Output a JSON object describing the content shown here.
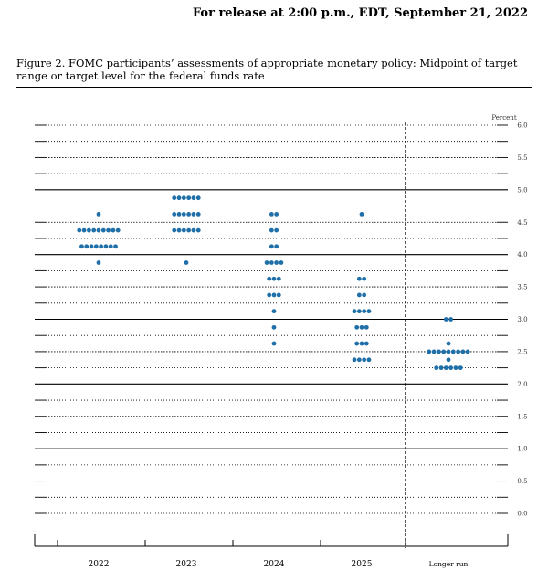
{
  "header": {
    "release": "For release at 2:00 p.m., EDT, September 21, 2022"
  },
  "figure": {
    "caption": "Figure 2.  FOMC participants’ assessments of appropriate monetary policy: Midpoint of target range or target level for the federal funds rate"
  },
  "chart_data": {
    "type": "scatter",
    "ylabel": "Percent",
    "ylim": [
      0,
      6
    ],
    "yticks": [
      "6.0",
      "5.5",
      "5.0",
      "4.5",
      "4.0",
      "3.5",
      "3.0",
      "2.5",
      "2.0",
      "1.5",
      "1.0",
      "0.5",
      "0.0"
    ],
    "categories": [
      "2022",
      "2023",
      "2024",
      "2025",
      "Longer run"
    ],
    "dot_color": "#1f6fa8",
    "series": [
      {
        "category": "2022",
        "points": [
          {
            "y": 4.625,
            "count": 1
          },
          {
            "y": 4.375,
            "count": 9
          },
          {
            "y": 4.125,
            "count": 8
          },
          {
            "y": 3.875,
            "count": 1
          }
        ]
      },
      {
        "category": "2023",
        "points": [
          {
            "y": 4.875,
            "count": 6
          },
          {
            "y": 4.625,
            "count": 6
          },
          {
            "y": 4.375,
            "count": 6
          },
          {
            "y": 3.875,
            "count": 1
          }
        ]
      },
      {
        "category": "2024",
        "points": [
          {
            "y": 4.625,
            "count": 2
          },
          {
            "y": 4.375,
            "count": 2
          },
          {
            "y": 4.125,
            "count": 2
          },
          {
            "y": 3.875,
            "count": 4
          },
          {
            "y": 3.625,
            "count": 3
          },
          {
            "y": 3.375,
            "count": 3
          },
          {
            "y": 3.125,
            "count": 1
          },
          {
            "y": 2.875,
            "count": 1
          },
          {
            "y": 2.625,
            "count": 1
          }
        ]
      },
      {
        "category": "2025",
        "points": [
          {
            "y": 4.625,
            "count": 1
          },
          {
            "y": 3.625,
            "count": 2
          },
          {
            "y": 3.375,
            "count": 2
          },
          {
            "y": 3.125,
            "count": 4
          },
          {
            "y": 2.875,
            "count": 3
          },
          {
            "y": 2.625,
            "count": 3
          },
          {
            "y": 2.375,
            "count": 4
          }
        ]
      },
      {
        "category": "Longer run",
        "points": [
          {
            "y": 3.0,
            "count": 2
          },
          {
            "y": 2.625,
            "count": 1
          },
          {
            "y": 2.5,
            "count": 9
          },
          {
            "y": 2.375,
            "count": 1
          },
          {
            "y": 2.25,
            "count": 6
          }
        ]
      }
    ]
  }
}
